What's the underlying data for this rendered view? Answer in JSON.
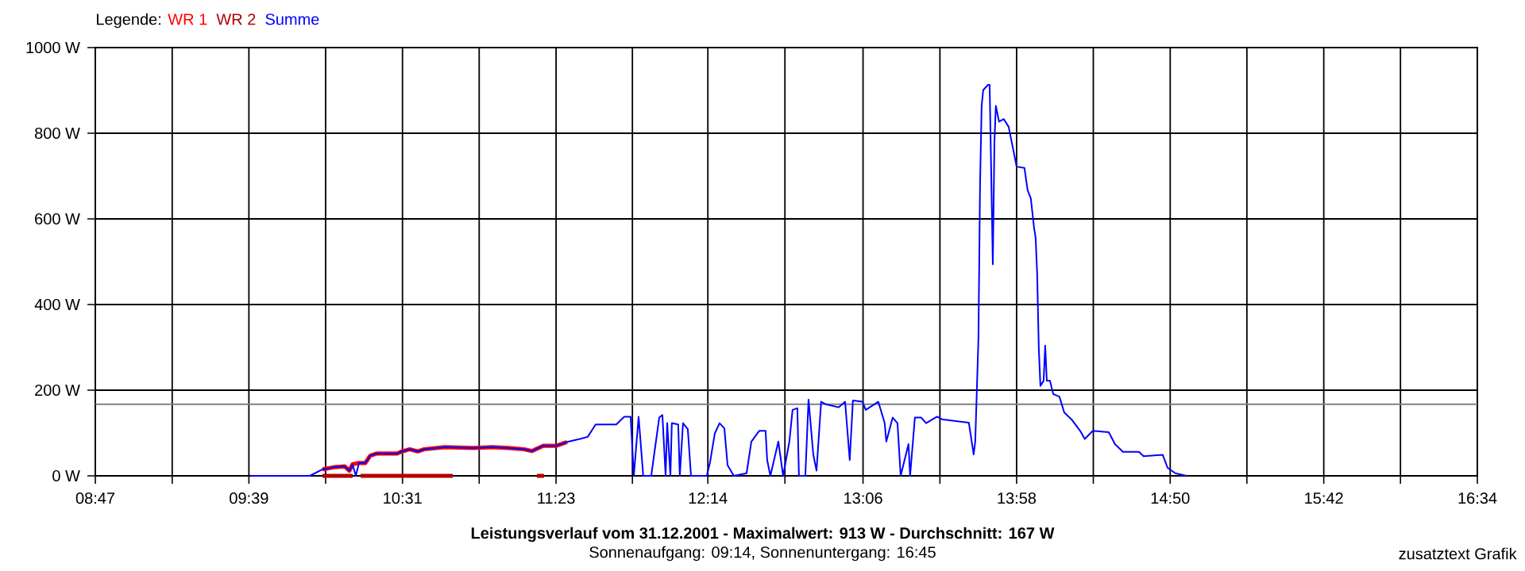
{
  "chart_data": {
    "type": "line",
    "title": "Leistungsverlauf vom 31.12.2001 - Maximalwert: 913 W - Durchschnitt: 167 W",
    "subtitle": "Sonnenaufgang: 09:14, Sonnenuntergang: 16:45",
    "annotations": [
      "zusatztext Grafik"
    ],
    "legend_title": "Legende:",
    "legend": "top left",
    "grid": true,
    "xlim": [
      8.783,
      16.567
    ],
    "xticks": [
      {
        "value": 8.783,
        "label": "08:47"
      },
      {
        "value": 9.216,
        "label": null
      },
      {
        "value": 9.648,
        "label": "09:39"
      },
      {
        "value": 10.08,
        "label": null
      },
      {
        "value": 10.513,
        "label": "10:31"
      },
      {
        "value": 10.945,
        "label": null
      },
      {
        "value": 11.378,
        "label": "11:23"
      },
      {
        "value": 11.808,
        "label": null
      },
      {
        "value": 12.233,
        "label": "12:14"
      },
      {
        "value": 12.667,
        "label": null
      },
      {
        "value": 13.107,
        "label": "13:06"
      },
      {
        "value": 13.54,
        "label": null
      },
      {
        "value": 13.972,
        "label": "13:58"
      },
      {
        "value": 14.404,
        "label": null
      },
      {
        "value": 14.837,
        "label": "14:50"
      },
      {
        "value": 15.269,
        "label": null
      },
      {
        "value": 15.702,
        "label": "15:42"
      },
      {
        "value": 16.134,
        "label": null
      },
      {
        "value": 16.567,
        "label": "16:34"
      }
    ],
    "ylim": [
      0,
      1000
    ],
    "yticks": [
      {
        "value": 0,
        "label": "0 W"
      },
      {
        "value": 200,
        "label": "200 W"
      },
      {
        "value": 400,
        "label": "400 W"
      },
      {
        "value": 600,
        "label": "600 W"
      },
      {
        "value": 800,
        "label": "800 W"
      },
      {
        "value": 1000,
        "label": "1000 W"
      }
    ],
    "ref_lines": [
      {
        "axis": "y",
        "value": 167,
        "color": "#808080"
      }
    ],
    "series": [
      {
        "name": "WR 1",
        "color": "#ff0000",
        "x": [
          10.062,
          10.125,
          10.188,
          10.214,
          10.232,
          10.268,
          10.304,
          10.331,
          10.366,
          10.483,
          10.51,
          10.554,
          10.599,
          10.635,
          10.751,
          10.912,
          11.02,
          11.109,
          11.198,
          11.243,
          11.306,
          11.377,
          11.44
        ],
        "values": [
          15,
          20,
          22,
          12,
          27,
          30,
          30,
          47,
          52,
          52,
          57,
          62,
          57,
          62,
          67,
          65,
          67,
          65,
          62,
          58,
          70,
          70,
          79
        ]
      },
      {
        "name": "WR 2",
        "color": "#b00000",
        "x": [
          10.062,
          10.232,
          10.25,
          10.277,
          10.796,
          10.8,
          11.27,
          11.31
        ],
        "values": [
          0,
          0,
          null,
          0,
          0,
          null,
          0,
          0
        ]
      },
      {
        "name": "Summe",
        "color": "#0000ff",
        "x": [
          9.66,
          9.991,
          10.062,
          10.125,
          10.188,
          10.214,
          10.232,
          10.25,
          10.268,
          10.304,
          10.331,
          10.366,
          10.483,
          10.51,
          10.554,
          10.599,
          10.635,
          10.751,
          10.912,
          11.02,
          11.109,
          11.198,
          11.243,
          11.306,
          11.377,
          11.44,
          11.512,
          11.556,
          11.601,
          11.717,
          11.762,
          11.798,
          11.816,
          11.843,
          11.869,
          11.914,
          11.959,
          11.977,
          11.995,
          12.004,
          12.022,
          12.03,
          12.066,
          12.075,
          12.093,
          12.12,
          12.138,
          12.227,
          12.245,
          12.272,
          12.299,
          12.326,
          12.344,
          12.379,
          12.451,
          12.478,
          12.522,
          12.558,
          12.567,
          12.585,
          12.63,
          12.657,
          12.692,
          12.71,
          12.737,
          12.746,
          12.782,
          12.8,
          12.827,
          12.845,
          12.871,
          12.898,
          12.97,
          13.006,
          13.032,
          13.05,
          13.104,
          13.122,
          13.193,
          13.229,
          13.238,
          13.274,
          13.301,
          13.319,
          13.363,
          13.372,
          13.399,
          13.435,
          13.462,
          13.524,
          13.551,
          13.703,
          13.73,
          13.739,
          13.757,
          13.766,
          13.775,
          13.784,
          13.811,
          13.82,
          13.829,
          13.838,
          13.847,
          13.855,
          13.873,
          13.9,
          13.927,
          13.945,
          13.972,
          14.016,
          14.034,
          14.052,
          14.07,
          14.079,
          14.088,
          14.097,
          14.106,
          14.124,
          14.133,
          14.142,
          14.16,
          14.178,
          14.213,
          14.24,
          14.285,
          14.33,
          14.356,
          14.401,
          14.491,
          14.526,
          14.571,
          14.661,
          14.687,
          14.795,
          14.822,
          14.866,
          14.929
        ],
        "values": [
          0,
          0,
          15,
          20,
          22,
          12,
          27,
          0,
          30,
          30,
          47,
          52,
          52,
          57,
          62,
          57,
          62,
          67,
          65,
          67,
          65,
          62,
          58,
          70,
          70,
          79,
          86,
          91,
          120,
          120,
          138,
          138,
          0,
          138,
          0,
          0,
          136,
          142,
          0,
          123,
          0,
          123,
          120,
          0,
          123,
          109,
          0,
          0,
          31,
          99,
          123,
          111,
          25,
          0,
          6,
          80,
          105,
          105,
          37,
          0,
          80,
          0,
          80,
          154,
          158,
          0,
          0,
          178,
          49,
          12,
          173,
          167,
          160,
          173,
          37,
          176,
          173,
          154,
          173,
          123,
          80,
          136,
          123,
          0,
          74,
          0,
          136,
          136,
          123,
          138,
          132,
          124,
          50,
          80,
          321,
          679,
          864,
          901,
          913,
          913,
          704,
          494,
          778,
          864,
          827,
          833,
          815,
          778,
          722,
          719,
          667,
          648,
          580,
          556,
          469,
          296,
          210,
          222,
          304,
          222,
          222,
          191,
          185,
          148,
          130,
          105,
          86,
          105,
          102,
          74,
          56,
          56,
          46,
          49,
          19,
          6,
          0
        ]
      }
    ]
  }
}
